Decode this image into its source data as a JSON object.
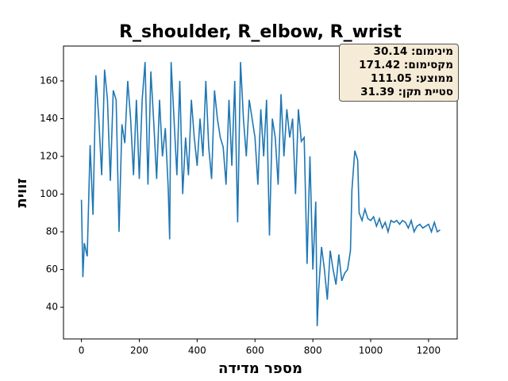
{
  "chart_data": {
    "type": "line",
    "title": "R_shoulder, R_elbow, R_wrist",
    "x_label": "מספר מדידה",
    "y_label": "זווית",
    "x": [
      0,
      5,
      10,
      20,
      30,
      40,
      50,
      60,
      70,
      80,
      90,
      100,
      110,
      120,
      130,
      140,
      150,
      160,
      170,
      180,
      190,
      200,
      210,
      220,
      230,
      240,
      250,
      260,
      270,
      280,
      290,
      300,
      305,
      310,
      320,
      330,
      340,
      350,
      360,
      370,
      380,
      390,
      400,
      410,
      420,
      430,
      440,
      450,
      460,
      470,
      480,
      490,
      500,
      510,
      520,
      530,
      540,
      550,
      560,
      570,
      580,
      590,
      600,
      610,
      620,
      630,
      640,
      650,
      660,
      670,
      680,
      690,
      700,
      710,
      720,
      730,
      740,
      750,
      760,
      770,
      780,
      790,
      800,
      810,
      815,
      820,
      830,
      840,
      850,
      860,
      870,
      880,
      890,
      900,
      910,
      920,
      930,
      935,
      945,
      955,
      960,
      970,
      980,
      990,
      1000,
      1010,
      1020,
      1030,
      1040,
      1050,
      1060,
      1070,
      1080,
      1090,
      1100,
      1110,
      1120,
      1130,
      1140,
      1150,
      1160,
      1170,
      1180,
      1190,
      1200,
      1210,
      1220,
      1230,
      1240
    ],
    "series": [
      {
        "name": "R_shoulder, R_elbow, R_wrist",
        "color": "#1f77b4",
        "values": [
          97,
          56,
          74,
          67,
          126,
          89,
          163,
          140,
          110,
          166,
          150,
          107,
          155,
          150,
          80,
          137,
          127,
          160,
          140,
          110,
          150,
          108,
          150,
          170,
          105,
          165,
          138,
          108,
          150,
          120,
          135,
          103,
          76,
          170,
          140,
          110,
          160,
          100,
          130,
          110,
          150,
          130,
          115,
          140,
          120,
          160,
          125,
          108,
          155,
          140,
          130,
          125,
          105,
          150,
          115,
          160,
          85,
          170,
          140,
          120,
          150,
          140,
          130,
          105,
          145,
          120,
          150,
          78,
          140,
          130,
          105,
          153,
          120,
          145,
          130,
          140,
          100,
          145,
          128,
          130,
          63,
          120,
          60,
          96,
          30,
          49,
          72,
          60,
          44,
          70,
          60,
          52,
          68,
          54,
          58,
          60,
          70,
          102,
          123,
          118,
          90,
          86,
          92,
          87,
          86,
          88,
          83,
          87,
          82,
          85,
          80,
          86,
          85,
          86,
          84,
          86,
          85,
          82,
          86,
          80,
          83,
          84,
          82,
          83,
          84,
          80,
          85,
          80,
          81
        ]
      }
    ],
    "xlim": [
      -62,
      1299
    ],
    "ylim": [
      23.2,
      178.5
    ],
    "xticks": [
      0,
      200,
      400,
      600,
      800,
      1000,
      1200
    ],
    "yticks": [
      40,
      60,
      80,
      100,
      120,
      140,
      160
    ],
    "grid": false,
    "annotations": [
      "מינימום: 30.14",
      "מקסימום: 171.42",
      "ממוצע: 111.05",
      "סטיית תקן: 31.39"
    ]
  }
}
